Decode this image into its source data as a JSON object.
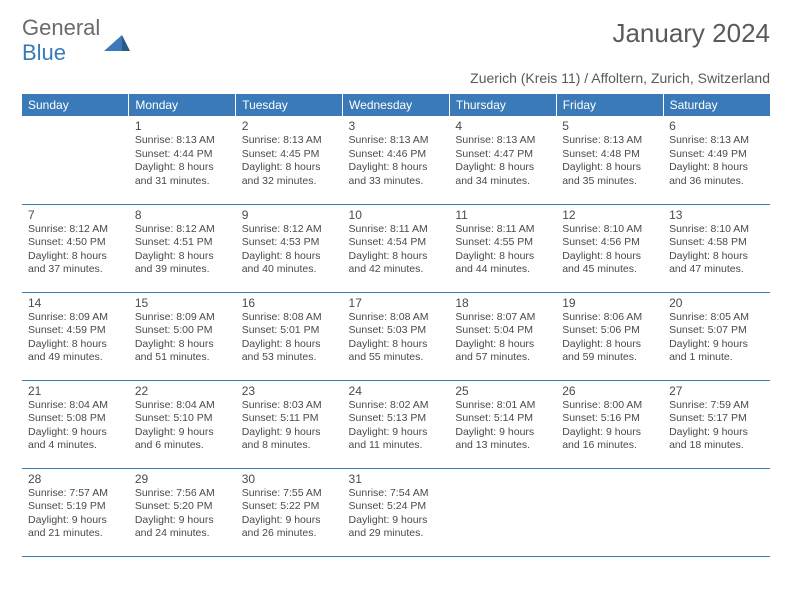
{
  "logo": {
    "line1": "General",
    "line2": "Blue"
  },
  "title": "January 2024",
  "subtitle": "Zuerich (Kreis 11) / Affoltern, Zurich, Switzerland",
  "header_bg": "#3a7ab8",
  "day_headers": [
    "Sunday",
    "Monday",
    "Tuesday",
    "Wednesday",
    "Thursday",
    "Friday",
    "Saturday"
  ],
  "cell_border_color": "#3a7ab8",
  "text_color": "#4a4a4a",
  "weeks": [
    [
      {
        "n": "",
        "sr": "",
        "ss": "",
        "dl": ""
      },
      {
        "n": "1",
        "sr": "Sunrise: 8:13 AM",
        "ss": "Sunset: 4:44 PM",
        "dl": "Daylight: 8 hours and 31 minutes."
      },
      {
        "n": "2",
        "sr": "Sunrise: 8:13 AM",
        "ss": "Sunset: 4:45 PM",
        "dl": "Daylight: 8 hours and 32 minutes."
      },
      {
        "n": "3",
        "sr": "Sunrise: 8:13 AM",
        "ss": "Sunset: 4:46 PM",
        "dl": "Daylight: 8 hours and 33 minutes."
      },
      {
        "n": "4",
        "sr": "Sunrise: 8:13 AM",
        "ss": "Sunset: 4:47 PM",
        "dl": "Daylight: 8 hours and 34 minutes."
      },
      {
        "n": "5",
        "sr": "Sunrise: 8:13 AM",
        "ss": "Sunset: 4:48 PM",
        "dl": "Daylight: 8 hours and 35 minutes."
      },
      {
        "n": "6",
        "sr": "Sunrise: 8:13 AM",
        "ss": "Sunset: 4:49 PM",
        "dl": "Daylight: 8 hours and 36 minutes."
      }
    ],
    [
      {
        "n": "7",
        "sr": "Sunrise: 8:12 AM",
        "ss": "Sunset: 4:50 PM",
        "dl": "Daylight: 8 hours and 37 minutes."
      },
      {
        "n": "8",
        "sr": "Sunrise: 8:12 AM",
        "ss": "Sunset: 4:51 PM",
        "dl": "Daylight: 8 hours and 39 minutes."
      },
      {
        "n": "9",
        "sr": "Sunrise: 8:12 AM",
        "ss": "Sunset: 4:53 PM",
        "dl": "Daylight: 8 hours and 40 minutes."
      },
      {
        "n": "10",
        "sr": "Sunrise: 8:11 AM",
        "ss": "Sunset: 4:54 PM",
        "dl": "Daylight: 8 hours and 42 minutes."
      },
      {
        "n": "11",
        "sr": "Sunrise: 8:11 AM",
        "ss": "Sunset: 4:55 PM",
        "dl": "Daylight: 8 hours and 44 minutes."
      },
      {
        "n": "12",
        "sr": "Sunrise: 8:10 AM",
        "ss": "Sunset: 4:56 PM",
        "dl": "Daylight: 8 hours and 45 minutes."
      },
      {
        "n": "13",
        "sr": "Sunrise: 8:10 AM",
        "ss": "Sunset: 4:58 PM",
        "dl": "Daylight: 8 hours and 47 minutes."
      }
    ],
    [
      {
        "n": "14",
        "sr": "Sunrise: 8:09 AM",
        "ss": "Sunset: 4:59 PM",
        "dl": "Daylight: 8 hours and 49 minutes."
      },
      {
        "n": "15",
        "sr": "Sunrise: 8:09 AM",
        "ss": "Sunset: 5:00 PM",
        "dl": "Daylight: 8 hours and 51 minutes."
      },
      {
        "n": "16",
        "sr": "Sunrise: 8:08 AM",
        "ss": "Sunset: 5:01 PM",
        "dl": "Daylight: 8 hours and 53 minutes."
      },
      {
        "n": "17",
        "sr": "Sunrise: 8:08 AM",
        "ss": "Sunset: 5:03 PM",
        "dl": "Daylight: 8 hours and 55 minutes."
      },
      {
        "n": "18",
        "sr": "Sunrise: 8:07 AM",
        "ss": "Sunset: 5:04 PM",
        "dl": "Daylight: 8 hours and 57 minutes."
      },
      {
        "n": "19",
        "sr": "Sunrise: 8:06 AM",
        "ss": "Sunset: 5:06 PM",
        "dl": "Daylight: 8 hours and 59 minutes."
      },
      {
        "n": "20",
        "sr": "Sunrise: 8:05 AM",
        "ss": "Sunset: 5:07 PM",
        "dl": "Daylight: 9 hours and 1 minute."
      }
    ],
    [
      {
        "n": "21",
        "sr": "Sunrise: 8:04 AM",
        "ss": "Sunset: 5:08 PM",
        "dl": "Daylight: 9 hours and 4 minutes."
      },
      {
        "n": "22",
        "sr": "Sunrise: 8:04 AM",
        "ss": "Sunset: 5:10 PM",
        "dl": "Daylight: 9 hours and 6 minutes."
      },
      {
        "n": "23",
        "sr": "Sunrise: 8:03 AM",
        "ss": "Sunset: 5:11 PM",
        "dl": "Daylight: 9 hours and 8 minutes."
      },
      {
        "n": "24",
        "sr": "Sunrise: 8:02 AM",
        "ss": "Sunset: 5:13 PM",
        "dl": "Daylight: 9 hours and 11 minutes."
      },
      {
        "n": "25",
        "sr": "Sunrise: 8:01 AM",
        "ss": "Sunset: 5:14 PM",
        "dl": "Daylight: 9 hours and 13 minutes."
      },
      {
        "n": "26",
        "sr": "Sunrise: 8:00 AM",
        "ss": "Sunset: 5:16 PM",
        "dl": "Daylight: 9 hours and 16 minutes."
      },
      {
        "n": "27",
        "sr": "Sunrise: 7:59 AM",
        "ss": "Sunset: 5:17 PM",
        "dl": "Daylight: 9 hours and 18 minutes."
      }
    ],
    [
      {
        "n": "28",
        "sr": "Sunrise: 7:57 AM",
        "ss": "Sunset: 5:19 PM",
        "dl": "Daylight: 9 hours and 21 minutes."
      },
      {
        "n": "29",
        "sr": "Sunrise: 7:56 AM",
        "ss": "Sunset: 5:20 PM",
        "dl": "Daylight: 9 hours and 24 minutes."
      },
      {
        "n": "30",
        "sr": "Sunrise: 7:55 AM",
        "ss": "Sunset: 5:22 PM",
        "dl": "Daylight: 9 hours and 26 minutes."
      },
      {
        "n": "31",
        "sr": "Sunrise: 7:54 AM",
        "ss": "Sunset: 5:24 PM",
        "dl": "Daylight: 9 hours and 29 minutes."
      },
      {
        "n": "",
        "sr": "",
        "ss": "",
        "dl": ""
      },
      {
        "n": "",
        "sr": "",
        "ss": "",
        "dl": ""
      },
      {
        "n": "",
        "sr": "",
        "ss": "",
        "dl": ""
      }
    ]
  ]
}
